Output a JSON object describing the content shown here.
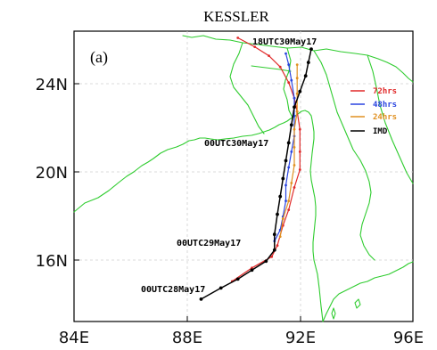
{
  "title": "KESSLER",
  "panel_label": "(a)",
  "x_ticks": [
    "84E",
    "88E",
    "92E",
    "96E"
  ],
  "y_ticks": [
    "24N",
    "20N",
    "16N"
  ],
  "annotations": {
    "t1": "18UTC30May17",
    "t2": "00UTC30May17",
    "t3": "00UTC29May17",
    "t4": "00UTC28May17"
  },
  "colors": {
    "r72": "#e02828",
    "r48": "#2a44e0",
    "r24": "#e09020",
    "imd": "#000000",
    "coast": "#2ecc2e"
  },
  "chart_data": {
    "type": "track_map",
    "title": "KESSLER",
    "xlim": [
      84,
      96
    ],
    "ylim": [
      13,
      26
    ],
    "x_ticks": [
      84,
      88,
      92,
      96
    ],
    "y_ticks": [
      16,
      20,
      24
    ],
    "legend_placement": "right",
    "series": [
      {
        "name": "72hrs",
        "color": "#e02828",
        "points": [
          [
            89.6,
            14.8
          ],
          [
            90.3,
            15.4
          ],
          [
            91.0,
            15.9
          ],
          [
            91.2,
            16.4
          ],
          [
            91.4,
            17.3
          ],
          [
            91.6,
            18.0
          ],
          [
            91.8,
            19.0
          ],
          [
            92.0,
            19.8
          ],
          [
            92.0,
            20.6
          ],
          [
            92.0,
            21.6
          ],
          [
            91.9,
            22.4
          ],
          [
            91.8,
            23.0
          ],
          [
            91.6,
            23.7
          ],
          [
            91.3,
            24.4
          ],
          [
            90.9,
            24.9
          ],
          [
            90.4,
            25.3
          ],
          [
            89.8,
            25.7
          ]
        ]
      },
      {
        "name": "48hrs",
        "color": "#2a44e0",
        "points": [
          [
            91.1,
            16.6
          ],
          [
            91.3,
            17.1
          ],
          [
            91.4,
            17.7
          ],
          [
            91.5,
            18.4
          ],
          [
            91.5,
            19.1
          ],
          [
            91.6,
            19.9
          ],
          [
            91.7,
            20.6
          ],
          [
            91.8,
            21.3
          ],
          [
            91.8,
            22.2
          ],
          [
            91.8,
            23.0
          ],
          [
            91.7,
            23.8
          ],
          [
            91.6,
            24.5
          ],
          [
            91.5,
            25.0
          ]
        ]
      },
      {
        "name": "24hrs",
        "color": "#e09020",
        "points": [
          [
            91.3,
            16.8
          ],
          [
            91.4,
            17.6
          ],
          [
            91.6,
            18.4
          ],
          [
            91.7,
            19.2
          ],
          [
            91.8,
            20.0
          ],
          [
            91.8,
            20.8
          ],
          [
            91.8,
            21.6
          ],
          [
            91.9,
            22.4
          ],
          [
            91.9,
            23.2
          ],
          [
            91.9,
            23.9
          ],
          [
            91.9,
            24.5
          ]
        ]
      },
      {
        "name": "IMD",
        "color": "#000000",
        "points": [
          [
            88.5,
            14.0
          ],
          [
            89.2,
            14.5
          ],
          [
            89.8,
            14.9
          ],
          [
            90.3,
            15.3
          ],
          [
            90.8,
            15.7
          ],
          [
            91.1,
            16.2
          ],
          [
            91.1,
            16.9
          ],
          [
            91.2,
            17.8
          ],
          [
            91.3,
            18.6
          ],
          [
            91.4,
            19.4
          ],
          [
            91.5,
            20.2
          ],
          [
            91.6,
            21.0
          ],
          [
            91.7,
            21.8
          ],
          [
            91.8,
            22.6
          ],
          [
            92.0,
            23.3
          ],
          [
            92.2,
            24.0
          ],
          [
            92.3,
            24.6
          ],
          [
            92.4,
            25.2
          ]
        ]
      }
    ],
    "annotations": [
      "18UTC30May17",
      "00UTC30May17",
      "00UTC29May17",
      "00UTC28May17"
    ]
  }
}
